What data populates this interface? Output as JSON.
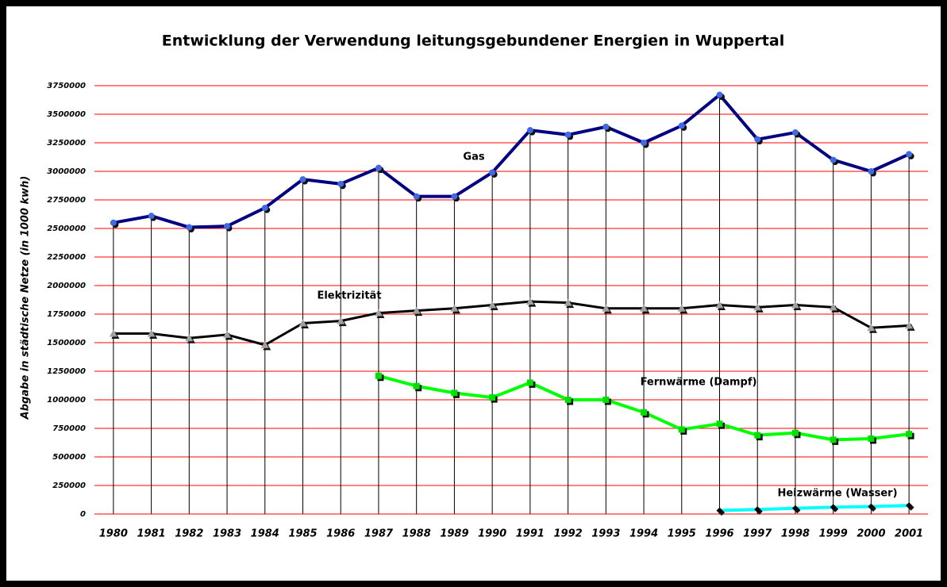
{
  "chart_data": {
    "type": "line",
    "title": "Entwicklung der Verwendung leitungsgebundener Energien in Wuppertal",
    "y_label": "Abgabe in städtische Netze (in 1000 kwh)",
    "categories": [
      "1980",
      "1981",
      "1982",
      "1983",
      "1984",
      "1985",
      "1986",
      "1987",
      "1988",
      "1989",
      "1990",
      "1991",
      "1992",
      "1993",
      "1994",
      "1995",
      "1996",
      "1997",
      "1998",
      "1999",
      "2000",
      "2001"
    ],
    "series": [
      {
        "name": "Gas",
        "color": "#000080",
        "marker_color": "#4169e1",
        "marker": "circle",
        "values": [
          2550000,
          2610000,
          2510000,
          2520000,
          2680000,
          2930000,
          2890000,
          3030000,
          2780000,
          2780000,
          2990000,
          3360000,
          3320000,
          3390000,
          3250000,
          3400000,
          3670000,
          3280000,
          3340000,
          3100000,
          3000000,
          3150000
        ]
      },
      {
        "name": "Elektrizität",
        "color": "#000000",
        "marker_color": "#a0a0a0",
        "marker": "triangle",
        "values": [
          1580000,
          1580000,
          1540000,
          1570000,
          1480000,
          1670000,
          1690000,
          1760000,
          1780000,
          1800000,
          1830000,
          1860000,
          1850000,
          1800000,
          1800000,
          1800000,
          1830000,
          1810000,
          1830000,
          1810000,
          1630000,
          1650000
        ]
      },
      {
        "name": "Fernwärme (Dampf)",
        "color": "#00ff00",
        "marker_color": "#00e000",
        "marker": "square",
        "values": [
          null,
          null,
          null,
          null,
          null,
          null,
          null,
          1210000,
          1120000,
          1060000,
          1020000,
          1150000,
          1000000,
          1000000,
          890000,
          740000,
          790000,
          690000,
          710000,
          650000,
          660000,
          700000
        ]
      },
      {
        "name": "Heizwärme (Wasser)",
        "color": "#00ffff",
        "marker_color": "#000000",
        "marker": "diamond",
        "values": [
          null,
          null,
          null,
          null,
          null,
          null,
          null,
          null,
          null,
          null,
          null,
          null,
          null,
          null,
          null,
          null,
          30000,
          40000,
          50000,
          60000,
          65000,
          75000
        ]
      }
    ],
    "ylim": [
      0,
      3750000
    ],
    "yticks": [
      0,
      250000,
      500000,
      750000,
      1000000,
      1250000,
      1500000,
      1750000,
      2000000,
      2250000,
      2500000,
      2750000,
      3000000,
      3250000,
      3500000,
      3750000
    ],
    "grid": true,
    "grid_color": "#ff0000",
    "drop_lines": true
  }
}
